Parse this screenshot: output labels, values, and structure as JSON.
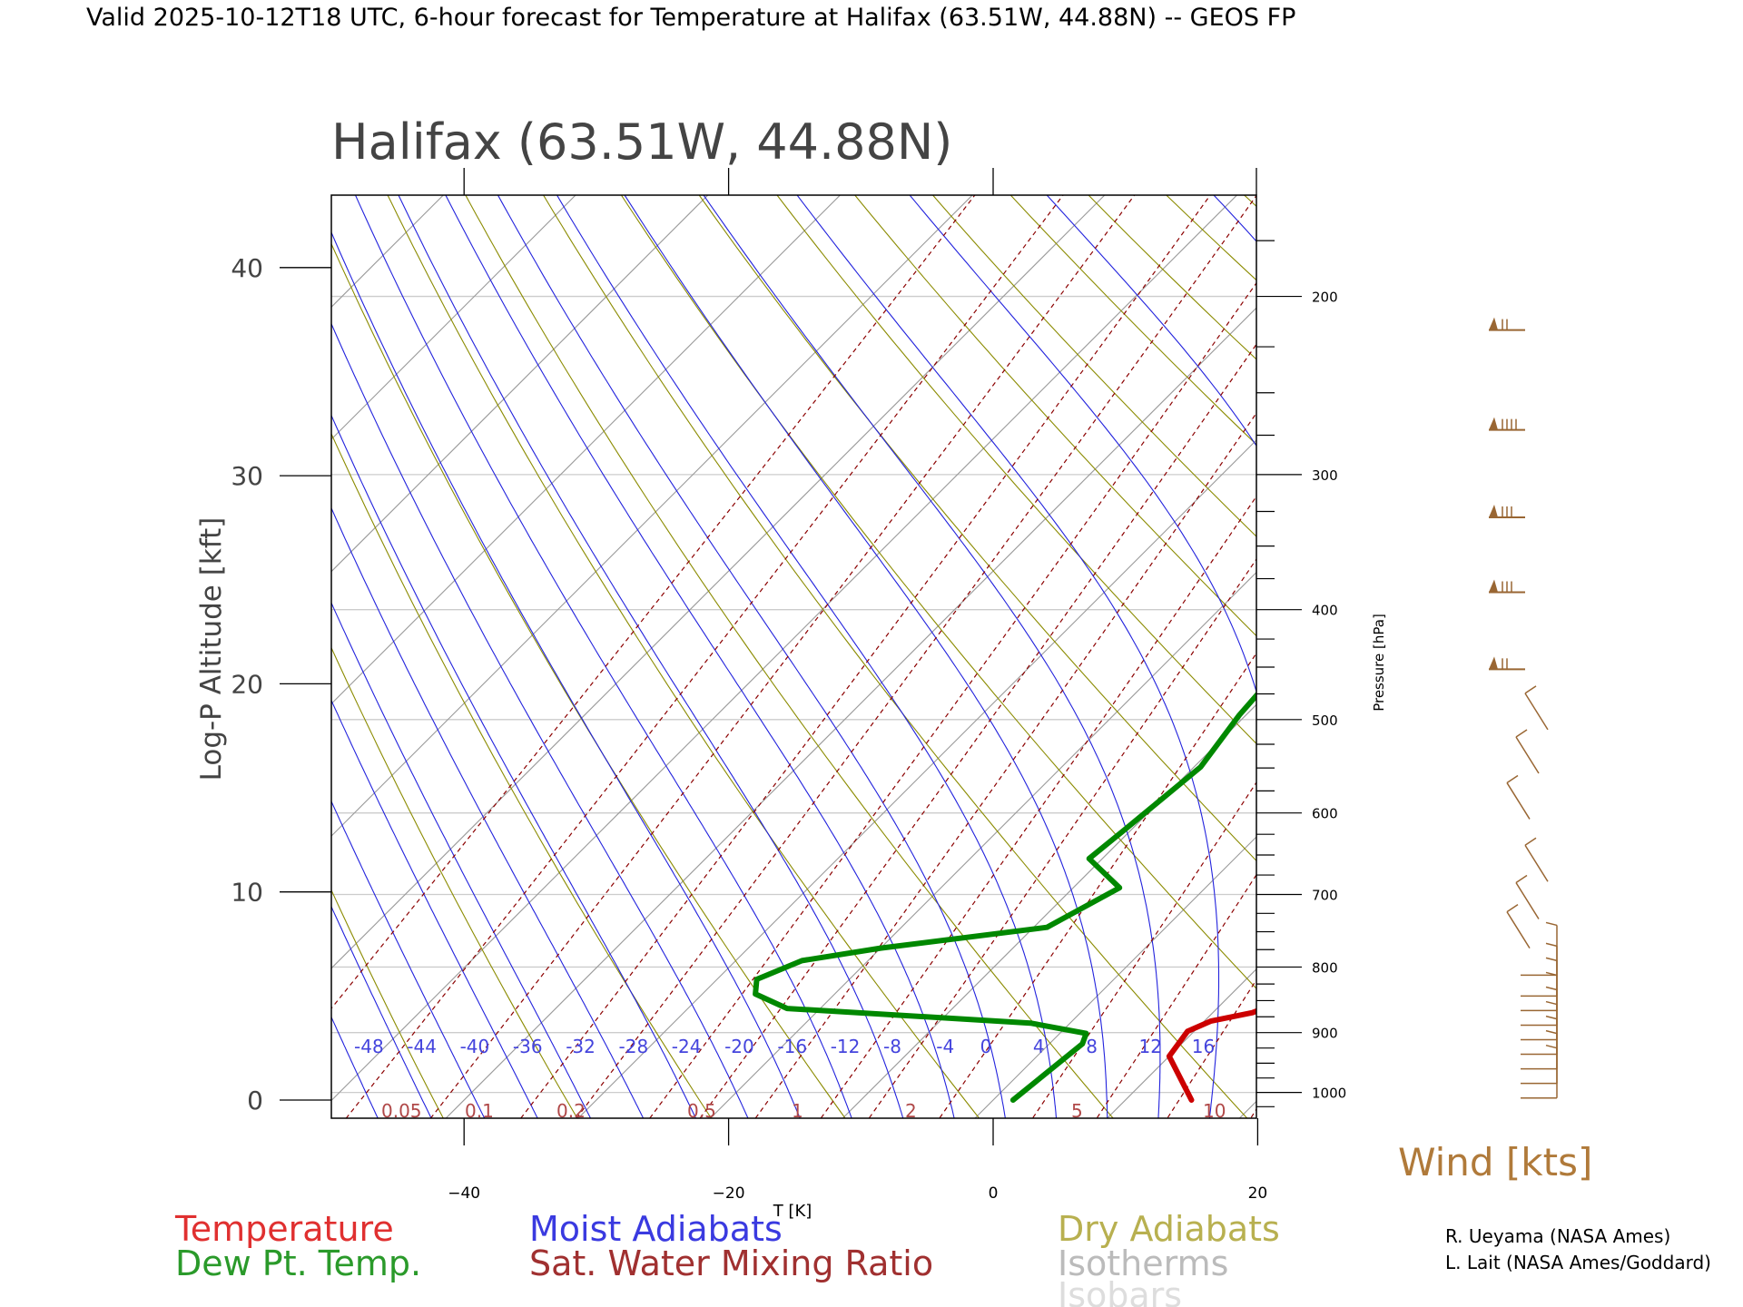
{
  "header": {
    "title": "Valid 2025-10-12T18 UTC, 6-hour forecast for Temperature at Halifax (63.51W, 44.88N) -- GEOS FP"
  },
  "chart_data": {
    "type": "line",
    "subtitle": "Halifax (63.51W, 44.88N)",
    "xlabel": "T [K]",
    "ylabel": "Log-P Altitude [kft]",
    "y2label": "Pressure [hPa]",
    "wind_label": "Wind [kts]",
    "xlim": [
      -50,
      20
    ],
    "ylim_kft": [
      -1,
      44
    ],
    "x_ticks": [
      "-40",
      "-20",
      "0",
      "20"
    ],
    "y_ticks": [
      "0",
      "10",
      "20",
      "30",
      "40"
    ],
    "pressure_ticks": [
      "200",
      "300",
      "400",
      "500",
      "600",
      "700",
      "800",
      "900",
      "1000"
    ],
    "moist_adiabat_labels": [
      "-48",
      "-44",
      "-40",
      "-36",
      "-32",
      "-28",
      "-24",
      "-20",
      "-16",
      "-12",
      "-8",
      "-4",
      "0",
      "4",
      "8",
      "12",
      "16"
    ],
    "mixing_ratio_labels": [
      "0.05",
      "0.1",
      "0.2",
      "0.5",
      "1",
      "2",
      "5",
      "10"
    ],
    "grid": true,
    "series": [
      {
        "name": "Temperature",
        "color": "#cc0000",
        "points": [
          [
            15,
            0
          ],
          [
            10,
            2.1
          ],
          [
            9.5,
            3.3
          ],
          [
            10.5,
            3.8
          ],
          [
            13,
            4.2
          ],
          [
            16,
            5.5
          ],
          [
            17,
            6.5
          ],
          [
            16.5,
            8
          ],
          [
            15.5,
            9.5
          ],
          [
            14.8,
            11
          ],
          [
            14,
            13
          ],
          [
            11.5,
            16
          ],
          [
            10.8,
            18.5
          ],
          [
            10.5,
            21
          ],
          [
            10.8,
            24
          ],
          [
            9.5,
            27
          ],
          [
            7.5,
            31.5
          ],
          [
            3.5,
            37
          ],
          [
            3,
            40
          ],
          [
            2.8,
            43.5
          ]
        ]
      },
      {
        "name": "Dew Pt. Temp.",
        "color": "#008800",
        "points": [
          [
            1.5,
            0
          ],
          [
            2.5,
            2.7
          ],
          [
            2,
            3.2
          ],
          [
            -3,
            3.7
          ],
          [
            -22.5,
            4.4
          ],
          [
            -26,
            5.1
          ],
          [
            -27,
            5.8
          ],
          [
            -25,
            6.7
          ],
          [
            -20,
            7.3
          ],
          [
            -9,
            8.3
          ],
          [
            -6.5,
            10.2
          ],
          [
            -11,
            11.6
          ],
          [
            -10.5,
            13
          ],
          [
            -9.5,
            16
          ],
          [
            -10.5,
            18.5
          ],
          [
            -11,
            21
          ],
          [
            -1.5,
            24
          ],
          [
            5,
            27.5
          ],
          [
            7.5,
            31.5
          ],
          [
            2.5,
            37
          ],
          [
            1.5,
            40
          ],
          [
            1,
            43.5
          ]
        ]
      }
    ],
    "winds": [
      {
        "alt_kft": 0.1,
        "barbs": 2
      },
      {
        "alt_kft": 0.8,
        "barbs": 2
      },
      {
        "alt_kft": 1.5,
        "barbs": 2
      },
      {
        "alt_kft": 2.2,
        "barbs": 2
      },
      {
        "alt_kft": 2.9,
        "barbs": 2
      },
      {
        "alt_kft": 3.6,
        "barbs": 2
      },
      {
        "alt_kft": 4.3,
        "barbs": 2
      },
      {
        "alt_kft": 5.0,
        "barbs": 2
      },
      {
        "alt_kft": 6.0,
        "barbs": 2
      },
      {
        "alt_kft": 7.3,
        "barbs": 1
      },
      {
        "alt_kft": 8.7,
        "barbs": 1
      },
      {
        "alt_kft": 10.5,
        "barbs": 1
      },
      {
        "alt_kft": 13.5,
        "barbs": 1
      },
      {
        "alt_kft": 15.7,
        "barbs": 1
      },
      {
        "alt_kft": 17.8,
        "barbs": 1
      },
      {
        "alt_kft": 20.7,
        "barbs": 3
      },
      {
        "alt_kft": 24.4,
        "barbs": 4
      },
      {
        "alt_kft": 28.0,
        "barbs": 4
      },
      {
        "alt_kft": 32.2,
        "barbs": 5
      },
      {
        "alt_kft": 37.0,
        "barbs": 3
      }
    ]
  },
  "legend": {
    "temperature": "Temperature",
    "dewpoint": "Dew Pt. Temp.",
    "moist_adiabats": "Moist Adiabats",
    "mixing_ratio": "Sat. Water Mixing Ratio",
    "dry_adiabats": "Dry Adiabats",
    "isotherms": "Isotherms",
    "isobars": "Isobars"
  },
  "credits": {
    "line1": "R. Ueyama (NASA Ames)",
    "line2": "L. Lait (NASA Ames/Goddard)"
  },
  "colors": {
    "temperature": "#cc0000",
    "dewpoint": "#008800",
    "moist_adiabats": "#2222dd",
    "mixing_ratio": "#8b0000",
    "dry_adiabats": "#8b8b00",
    "isotherms": "#999999",
    "isobars": "#cccccc",
    "wind": "#996633"
  }
}
